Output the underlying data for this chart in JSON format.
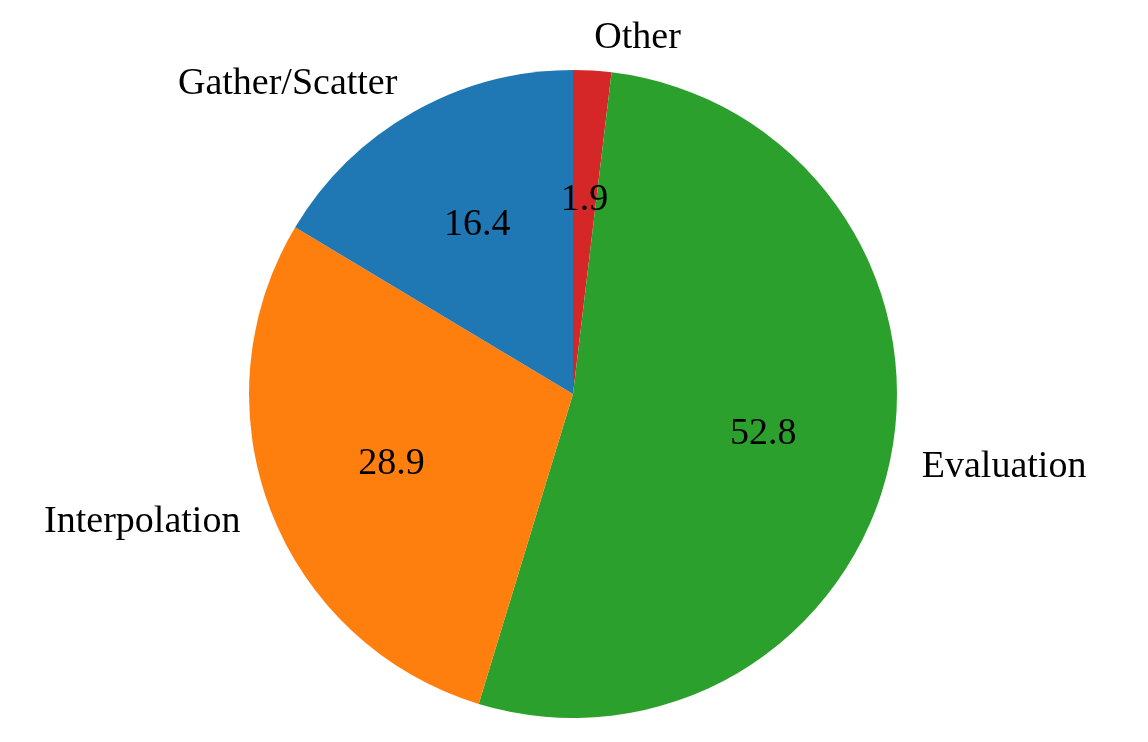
{
  "chart_data": {
    "type": "pie",
    "categories": [
      "Other",
      "Evaluation",
      "Interpolation",
      "Gather/Scatter"
    ],
    "values": [
      1.9,
      52.8,
      28.9,
      16.4
    ],
    "colors": [
      "#d62728",
      "#2ca02c",
      "#ff7f0e",
      "#1f77b4"
    ],
    "data_labels": true,
    "legend": false
  }
}
